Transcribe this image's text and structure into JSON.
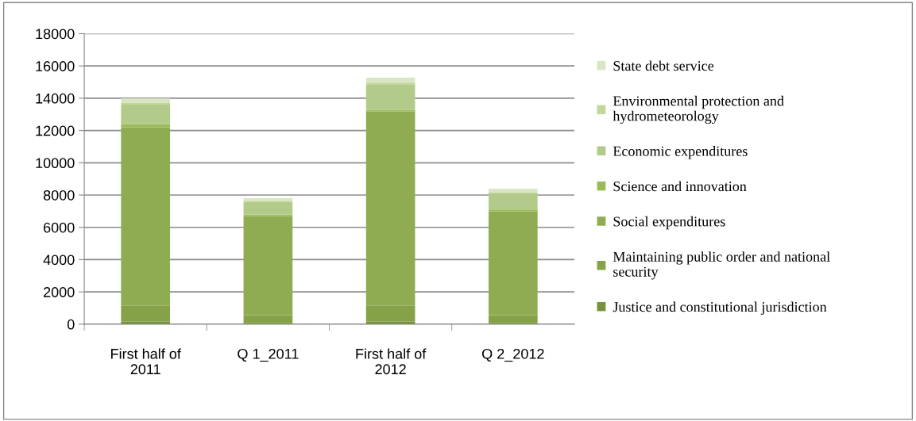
{
  "chart_data": {
    "type": "bar",
    "stacked": true,
    "categories": [
      "First half of\n2011",
      "Q 1_2011",
      "First half of\n2012",
      "Q 2_2012"
    ],
    "series": [
      {
        "name": "Justice and constitutional jurisdiction",
        "color": "#76923c",
        "values": [
          150,
          80,
          150,
          80
        ]
      },
      {
        "name": "Maintaining public order and national\nsecurity",
        "color": "#86a248",
        "values": [
          980,
          480,
          980,
          480
        ]
      },
      {
        "name": "Social expenditures",
        "color": "#8fac52",
        "values": [
          11070,
          6140,
          12040,
          6440
        ]
      },
      {
        "name": "Science and innovation",
        "color": "#9bbb59",
        "values": [
          200,
          100,
          100,
          100
        ]
      },
      {
        "name": "Economic expenditures",
        "color": "#b3cb8a",
        "values": [
          1200,
          800,
          1600,
          1000
        ]
      },
      {
        "name": "Environmental protection and\nhydrometeorology",
        "color": "#c3d69b",
        "values": [
          100,
          50,
          100,
          50
        ]
      },
      {
        "name": "State debt service",
        "color": "#d9e5c3",
        "values": [
          300,
          150,
          300,
          250
        ]
      }
    ],
    "ylim": [
      0,
      18000
    ],
    "yticks": [
      0,
      2000,
      4000,
      6000,
      8000,
      10000,
      12000,
      14000,
      16000,
      18000
    ],
    "grid": "y",
    "legend": "right"
  }
}
